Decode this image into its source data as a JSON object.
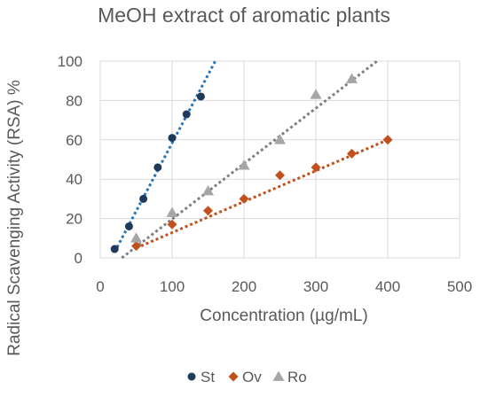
{
  "chart_data": {
    "type": "scatter",
    "title": "MeOH extract of aromatic plants",
    "xlabel": "Concentration (µg/mL)",
    "ylabel": "Radical Scavenging Activity (RSA) %",
    "xlim": [
      0,
      500
    ],
    "ylim": [
      0,
      100
    ],
    "xticks": [
      "0",
      "100",
      "200",
      "300",
      "400",
      "500"
    ],
    "yticks": [
      "0",
      "20",
      "40",
      "60",
      "80",
      "100"
    ],
    "grid": "vertical and horizontal",
    "legend_position": "bottom",
    "trendlines": "linear, dotted",
    "series": [
      {
        "name": "St",
        "color": "#1f3b5c",
        "trend_color": "#2e75b6",
        "marker": "circle",
        "x": [
          20,
          40,
          60,
          80,
          100,
          120,
          140
        ],
        "y": [
          4.5,
          16,
          30,
          46,
          61,
          73,
          82
        ],
        "trend": [
          [
            20,
            3
          ],
          [
            160,
            100
          ]
        ]
      },
      {
        "name": "Ov",
        "color": "#c0501c",
        "trend_color": "#c0501c",
        "marker": "diamond",
        "x": [
          50,
          100,
          150,
          200,
          250,
          300,
          350,
          400
        ],
        "y": [
          6,
          17,
          24,
          30,
          42,
          46,
          53,
          60
        ],
        "trend": [
          [
            50,
            5
          ],
          [
            400,
            60
          ]
        ]
      },
      {
        "name": "Ro",
        "color": "#a6a6a6",
        "trend_color": "#808080",
        "marker": "triangle",
        "x": [
          50,
          100,
          150,
          200,
          250,
          300,
          350
        ],
        "y": [
          10,
          23,
          34,
          47,
          60,
          83,
          91
        ],
        "trend": [
          [
            30,
            0
          ],
          [
            385,
            100
          ]
        ]
      }
    ]
  }
}
